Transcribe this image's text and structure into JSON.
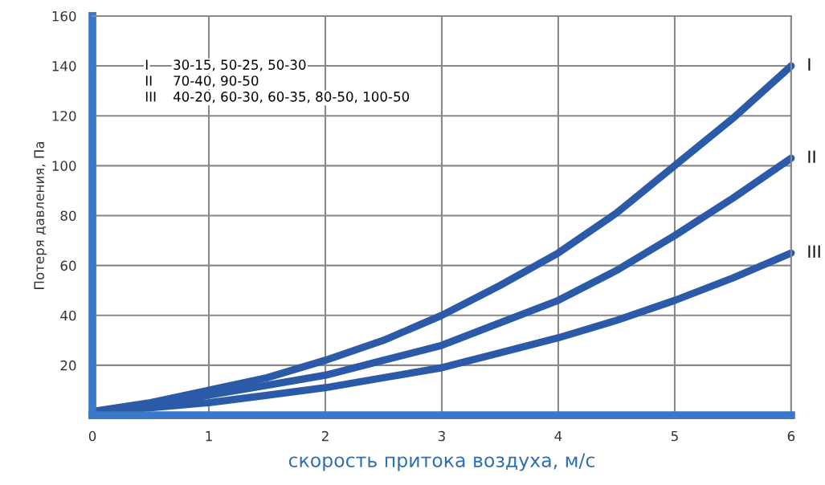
{
  "chart_data": {
    "type": "line",
    "xlabel": "скорость притока воздуха, м/с",
    "ylabel": "Потеря давления, Па",
    "x": [
      0,
      0.5,
      1,
      1.5,
      2,
      2.5,
      3,
      3.5,
      4,
      4.5,
      5,
      5.5,
      6
    ],
    "series": [
      {
        "name": "I",
        "color": "#2b5ba8",
        "values": [
          1.5,
          5,
          10,
          15,
          22,
          30,
          40,
          52,
          65,
          81,
          100,
          119,
          140
        ]
      },
      {
        "name": "II",
        "color": "#2b5ba8",
        "values": [
          1.5,
          4,
          8,
          12,
          16,
          22,
          28,
          37,
          46,
          58,
          72,
          87,
          103
        ]
      },
      {
        "name": "III",
        "color": "#2b5ba8",
        "values": [
          1.5,
          3,
          5,
          8,
          11,
          15,
          19,
          25,
          31,
          38,
          46,
          55,
          65
        ]
      }
    ],
    "xlim": [
      0,
      6
    ],
    "ylim": [
      0,
      160
    ],
    "xticks": [
      0,
      1,
      2,
      3,
      4,
      5,
      6
    ],
    "yticks": [
      20,
      40,
      60,
      80,
      100,
      120,
      140,
      160
    ],
    "grid": true,
    "legend": false,
    "marker": "none",
    "line_style": "solid",
    "annotations": [
      "I 30-15, 50-25, 50-30",
      "II 70-40, 90-50",
      "III 40-20, 60-30, 60-35, 80-50, 100-50"
    ]
  }
}
